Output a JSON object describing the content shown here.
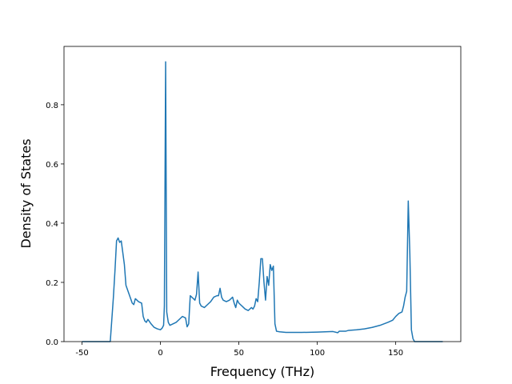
{
  "chart_data": {
    "type": "line",
    "xlabel": "Frequency (THz)",
    "ylabel": "Density of States",
    "xlim": [
      -61.5,
      191.5
    ],
    "ylim": [
      0,
      0.997
    ],
    "xticks": [
      -50,
      0,
      50,
      100,
      150
    ],
    "yticks": [
      {
        "value": 0,
        "label": "0.0"
      },
      0.2,
      0.4,
      0.6,
      0.8
    ],
    "grid": false,
    "series": [
      {
        "color": "#1f77b4",
        "x": [
          -50,
          -32,
          -30,
          -29,
          -28,
          -27,
          -26,
          -25,
          -23,
          -22,
          -20,
          -18,
          -17,
          -16,
          -14,
          -12,
          -11,
          -10,
          -9,
          -8,
          -6,
          -4,
          -2,
          0,
          1,
          2,
          2.5,
          3.3,
          4,
          5,
          6,
          8,
          10,
          12,
          14,
          16,
          17,
          18,
          19,
          21,
          22,
          23,
          24,
          25,
          26,
          28,
          30,
          32,
          34,
          36,
          37,
          38,
          39,
          40,
          42,
          44,
          46,
          47,
          48,
          49,
          50,
          52,
          54,
          56,
          58,
          59,
          60,
          61,
          62,
          63,
          64,
          65,
          66,
          67,
          68,
          69,
          70,
          71,
          72,
          73,
          74,
          76,
          80,
          90,
          100,
          110,
          113,
          114,
          118,
          120,
          125,
          130,
          135,
          140,
          145,
          148,
          150,
          152,
          154,
          155,
          156,
          157,
          158,
          159,
          160,
          161,
          162,
          180
        ],
        "values": [
          0,
          0,
          0.15,
          0.24,
          0.34,
          0.35,
          0.335,
          0.34,
          0.26,
          0.19,
          0.16,
          0.13,
          0.125,
          0.145,
          0.135,
          0.13,
          0.085,
          0.07,
          0.065,
          0.075,
          0.06,
          0.048,
          0.043,
          0.04,
          0.045,
          0.055,
          0.12,
          0.945,
          0.1,
          0.065,
          0.055,
          0.06,
          0.065,
          0.075,
          0.085,
          0.08,
          0.05,
          0.06,
          0.155,
          0.145,
          0.14,
          0.16,
          0.235,
          0.13,
          0.12,
          0.115,
          0.125,
          0.135,
          0.15,
          0.155,
          0.155,
          0.18,
          0.15,
          0.14,
          0.135,
          0.14,
          0.15,
          0.13,
          0.115,
          0.14,
          0.13,
          0.12,
          0.11,
          0.105,
          0.115,
          0.11,
          0.12,
          0.145,
          0.135,
          0.2,
          0.28,
          0.28,
          0.2,
          0.14,
          0.22,
          0.19,
          0.26,
          0.24,
          0.255,
          0.06,
          0.035,
          0.033,
          0.031,
          0.031,
          0.032,
          0.034,
          0.03,
          0.035,
          0.035,
          0.038,
          0.04,
          0.043,
          0.048,
          0.055,
          0.065,
          0.072,
          0.085,
          0.095,
          0.1,
          0.12,
          0.15,
          0.17,
          0.475,
          0.3,
          0.04,
          0.01,
          0,
          0
        ]
      }
    ]
  }
}
